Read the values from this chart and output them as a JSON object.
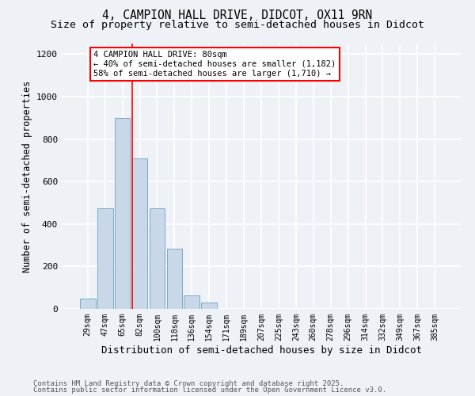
{
  "title_line1": "4, CAMPION HALL DRIVE, DIDCOT, OX11 9RN",
  "title_line2": "Size of property relative to semi-detached houses in Didcot",
  "xlabel": "Distribution of semi-detached houses by size in Didcot",
  "ylabel": "Number of semi-detached properties",
  "categories": [
    "29sqm",
    "47sqm",
    "65sqm",
    "82sqm",
    "100sqm",
    "118sqm",
    "136sqm",
    "154sqm",
    "171sqm",
    "189sqm",
    "207sqm",
    "225sqm",
    "243sqm",
    "260sqm",
    "278sqm",
    "296sqm",
    "314sqm",
    "332sqm",
    "349sqm",
    "367sqm",
    "385sqm"
  ],
  "values": [
    50,
    475,
    900,
    710,
    475,
    285,
    65,
    30,
    0,
    0,
    0,
    0,
    0,
    0,
    0,
    0,
    0,
    0,
    0,
    0,
    0
  ],
  "bar_color": "#c8d8e8",
  "bar_edge_color": "#7aaac8",
  "vline_x": 2.575,
  "vline_color": "red",
  "annotation_text": "4 CAMPION HALL DRIVE: 80sqm\n← 40% of semi-detached houses are smaller (1,182)\n58% of semi-detached houses are larger (1,710) →",
  "annotation_box_color": "white",
  "annotation_box_edge": "red",
  "ylim": [
    0,
    1250
  ],
  "yticks": [
    0,
    200,
    400,
    600,
    800,
    1000,
    1200
  ],
  "background_color": "#eef2f7",
  "grid_color": "white",
  "footer_line1": "Contains HM Land Registry data © Crown copyright and database right 2025.",
  "footer_line2": "Contains public sector information licensed under the Open Government Licence v3.0.",
  "title_fontsize": 10.5,
  "subtitle_fontsize": 9.5,
  "axis_label_fontsize": 8.5,
  "tick_fontsize": 7,
  "annotation_fontsize": 7.5,
  "footer_fontsize": 6.5
}
